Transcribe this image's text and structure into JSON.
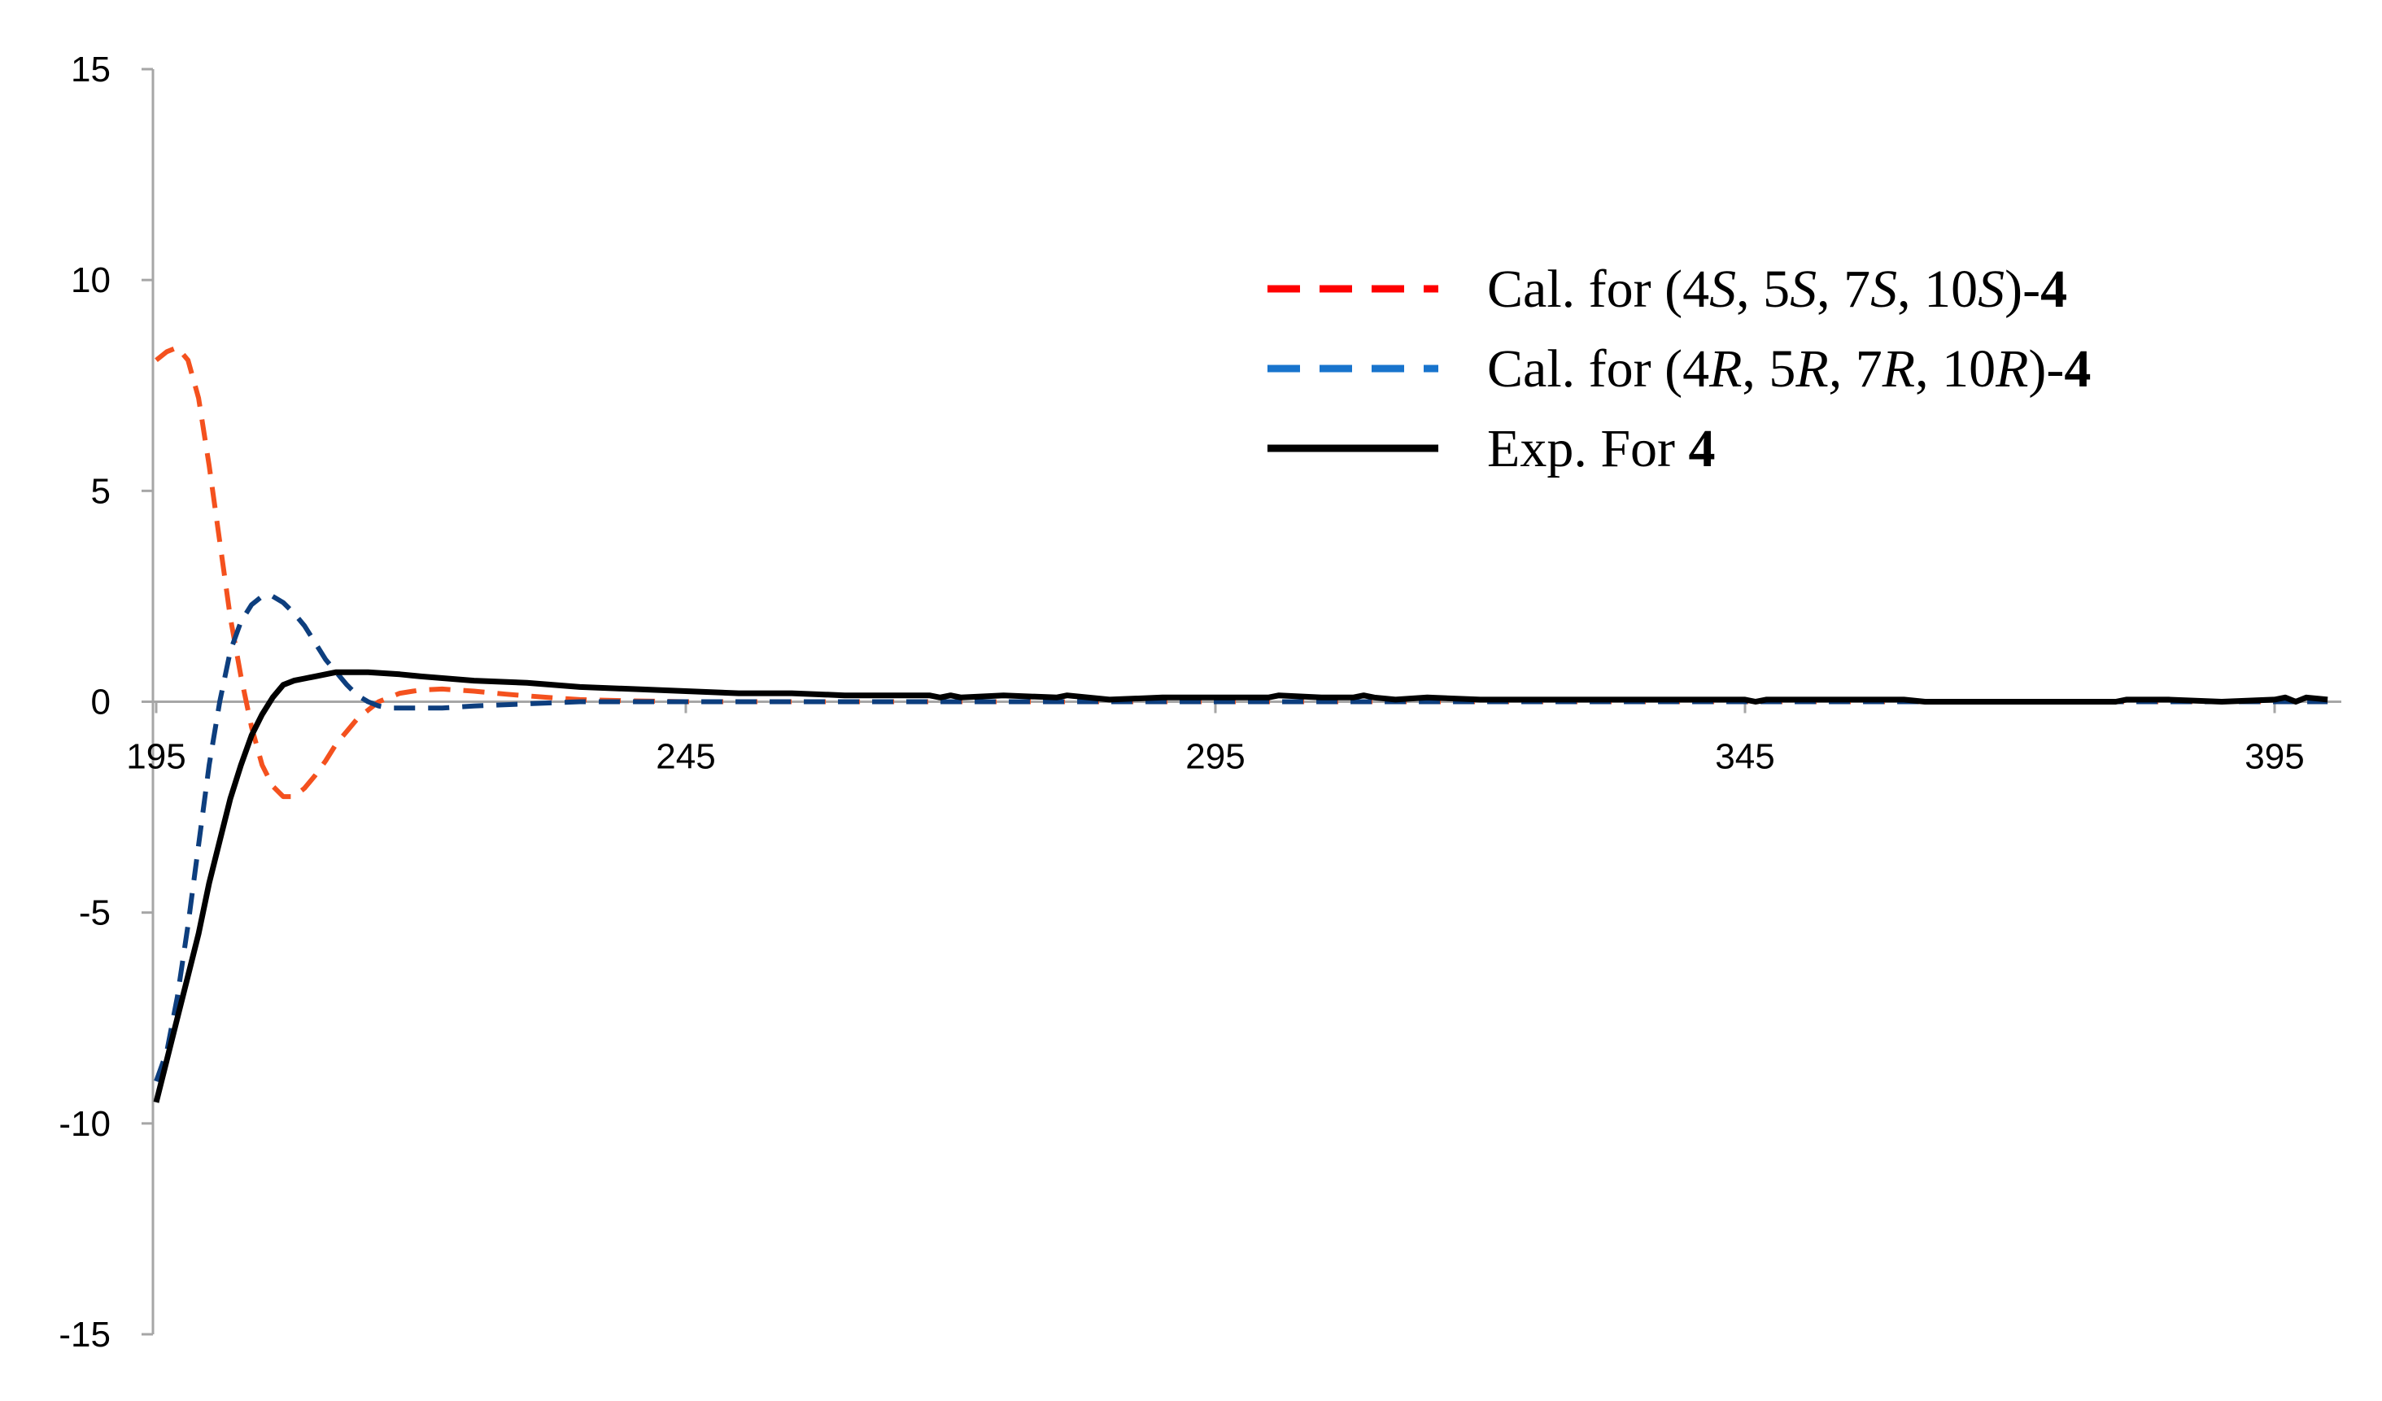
{
  "chart_data": {
    "type": "line",
    "title": "",
    "xlabel": "",
    "ylabel": "",
    "xlim": [
      195,
      400
    ],
    "ylim": [
      -15,
      15
    ],
    "x_ticks": [
      195,
      245,
      295,
      345,
      395
    ],
    "y_ticks": [
      15,
      10,
      5,
      0,
      -5,
      -10,
      -15
    ],
    "x_tick_labels": [
      "195",
      "245",
      "295",
      "345",
      "395"
    ],
    "y_tick_labels": [
      "15",
      "10",
      "5",
      "0",
      "-5",
      "-10",
      "-15"
    ],
    "grid": false,
    "legend_position": "top-right",
    "series": [
      {
        "name": "Cal. for (4S, 5S, 7S, 10S)-4",
        "legend_parts": [
          {
            "text": "Cal.  for (4",
            "style": "normal"
          },
          {
            "text": "S",
            "style": "italic"
          },
          {
            "text": ", 5",
            "style": "normal"
          },
          {
            "text": "S",
            "style": "italic"
          },
          {
            "text": ", 7",
            "style": "normal"
          },
          {
            "text": "S",
            "style": "italic"
          },
          {
            "text": ", 10",
            "style": "normal"
          },
          {
            "text": "S",
            "style": "italic"
          },
          {
            "text": ")-",
            "style": "normal"
          },
          {
            "text": "4",
            "style": "bold"
          }
        ],
        "color": "#F4511E",
        "legend_color": "#FF0000",
        "line_style": "dashed",
        "x": [
          195,
          196,
          197,
          198,
          199,
          200,
          201,
          202,
          203,
          204,
          205,
          206,
          207,
          208,
          209,
          210,
          211,
          212,
          213,
          214,
          215,
          216,
          217,
          218,
          220,
          222,
          225,
          228,
          232,
          235,
          240,
          245,
          250,
          260,
          270,
          280,
          290,
          300,
          320,
          340,
          360,
          380,
          400
        ],
        "y": [
          8.1,
          8.3,
          8.4,
          8.1,
          7.2,
          5.6,
          3.8,
          2.0,
          0.6,
          -0.6,
          -1.5,
          -2.0,
          -2.25,
          -2.25,
          -2.05,
          -1.75,
          -1.4,
          -1.0,
          -0.7,
          -0.4,
          -0.2,
          0.0,
          0.1,
          0.2,
          0.28,
          0.3,
          0.25,
          0.18,
          0.1,
          0.05,
          0.02,
          0.0,
          0.0,
          0.0,
          0.0,
          0.0,
          0.0,
          0.0,
          0.0,
          0.0,
          0.0,
          0.0,
          0.0
        ]
      },
      {
        "name": "Cal. for (4R, 5R, 7R, 10R)-4",
        "legend_parts": [
          {
            "text": "Cal.  for (4",
            "style": "normal"
          },
          {
            "text": "R",
            "style": "italic"
          },
          {
            "text": ", 5",
            "style": "normal"
          },
          {
            "text": "R,",
            "style": "italic"
          },
          {
            "text": " 7",
            "style": "normal"
          },
          {
            "text": "R",
            "style": "italic"
          },
          {
            "text": ", 10",
            "style": "normal"
          },
          {
            "text": "R",
            "style": "italic"
          },
          {
            "text": ")-",
            "style": "normal"
          },
          {
            "text": "4",
            "style": "bold"
          }
        ],
        "color": "#0D3E7E",
        "legend_color": "#1874CD",
        "line_style": "dashed",
        "x": [
          195,
          196,
          197,
          198,
          199,
          200,
          201,
          202,
          203,
          204,
          205,
          206,
          207,
          208,
          209,
          210,
          211,
          212,
          213,
          214,
          215,
          216,
          217,
          218,
          220,
          222,
          225,
          230,
          235,
          240,
          245,
          250,
          260,
          280,
          300,
          320,
          340,
          360,
          380,
          400
        ],
        "y": [
          -9.0,
          -8.3,
          -7.0,
          -5.3,
          -3.4,
          -1.5,
          0.0,
          1.2,
          1.9,
          2.3,
          2.5,
          2.5,
          2.35,
          2.1,
          1.8,
          1.4,
          1.0,
          0.7,
          0.4,
          0.15,
          0.0,
          -0.1,
          -0.15,
          -0.15,
          -0.15,
          -0.15,
          -0.1,
          -0.05,
          0.0,
          0.0,
          0.0,
          0.0,
          0.0,
          0.0,
          0.0,
          0.0,
          0.0,
          0.0,
          0.0,
          0.0
        ]
      },
      {
        "name": "Exp. For 4",
        "legend_parts": [
          {
            "text": "Exp. For ",
            "style": "normal"
          },
          {
            "text": "4",
            "style": "bold"
          }
        ],
        "color": "#000000",
        "legend_color": "#000000",
        "line_style": "solid",
        "x": [
          195,
          196,
          197,
          198,
          199,
          200,
          201,
          202,
          203,
          204,
          205,
          206,
          207,
          208,
          209,
          210,
          211,
          212,
          213,
          215,
          218,
          220,
          225,
          230,
          235,
          240,
          245,
          250,
          255,
          260,
          265,
          268,
          269,
          270,
          271,
          275,
          280,
          281,
          285,
          290,
          295,
          300,
          301,
          305,
          308,
          309,
          310,
          312,
          315,
          320,
          330,
          340,
          345,
          346,
          347,
          350,
          355,
          360,
          362,
          365,
          370,
          375,
          380,
          381,
          385,
          390,
          395,
          396,
          397,
          398,
          400
        ],
        "y": [
          -9.5,
          -8.5,
          -7.5,
          -6.5,
          -5.5,
          -4.3,
          -3.3,
          -2.3,
          -1.5,
          -0.8,
          -0.3,
          0.1,
          0.4,
          0.5,
          0.55,
          0.6,
          0.65,
          0.7,
          0.7,
          0.7,
          0.65,
          0.6,
          0.5,
          0.45,
          0.35,
          0.3,
          0.25,
          0.2,
          0.2,
          0.15,
          0.15,
          0.15,
          0.1,
          0.15,
          0.1,
          0.15,
          0.1,
          0.15,
          0.05,
          0.1,
          0.1,
          0.1,
          0.15,
          0.1,
          0.1,
          0.15,
          0.1,
          0.05,
          0.1,
          0.05,
          0.05,
          0.05,
          0.05,
          0.0,
          0.05,
          0.05,
          0.05,
          0.05,
          0.0,
          0.0,
          0.0,
          0.0,
          0.0,
          0.05,
          0.05,
          0.0,
          0.05,
          0.1,
          0.0,
          0.1,
          0.05
        ]
      }
    ]
  }
}
